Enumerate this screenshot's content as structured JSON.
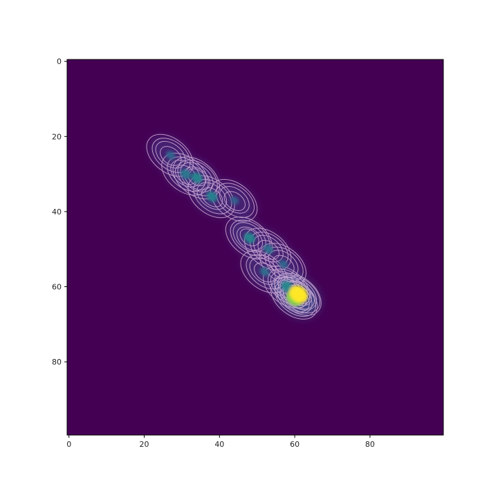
{
  "chart_data": {
    "type": "heatmap",
    "title": "",
    "xlabel": "",
    "ylabel": "",
    "xlim": [
      -0.5,
      99.5
    ],
    "ylim": [
      99.5,
      -0.5
    ],
    "y_axis_inverted": true,
    "x_ticks": [
      0,
      20,
      40,
      60,
      80
    ],
    "y_ticks": [
      0,
      20,
      40,
      60,
      80
    ],
    "grid": false,
    "colormap": "viridis",
    "contour_color": "#e8c3ea",
    "background_value_color": "#440154",
    "hotspots": [
      {
        "x": 27,
        "y": 25,
        "intensity": 0.18
      },
      {
        "x": 31,
        "y": 30,
        "intensity": 0.3
      },
      {
        "x": 34,
        "y": 31,
        "intensity": 0.38
      },
      {
        "x": 38,
        "y": 36,
        "intensity": 0.36
      },
      {
        "x": 44,
        "y": 37,
        "intensity": 0.14
      },
      {
        "x": 48,
        "y": 47,
        "intensity": 0.38
      },
      {
        "x": 53,
        "y": 50,
        "intensity": 0.25
      },
      {
        "x": 52,
        "y": 56,
        "intensity": 0.22
      },
      {
        "x": 57,
        "y": 54,
        "intensity": 0.18
      },
      {
        "x": 58,
        "y": 60,
        "intensity": 0.4
      },
      {
        "x": 60,
        "y": 63,
        "intensity": 0.85
      },
      {
        "x": 61,
        "y": 62,
        "intensity": 1.0
      }
    ]
  }
}
